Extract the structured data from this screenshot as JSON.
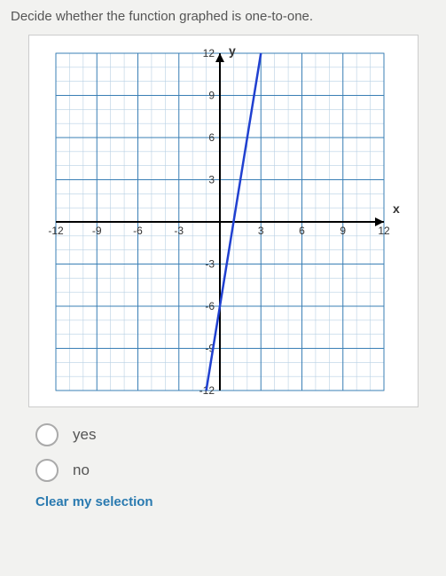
{
  "question": "Decide whether the function graphed is one-to-one.",
  "chart": {
    "type": "line",
    "x_axis_label": "x",
    "y_axis_label": "y",
    "xlim": [
      -12,
      12
    ],
    "ylim": [
      -12,
      12
    ],
    "major_step": 3,
    "minor_step": 1,
    "x_ticks": [
      -12,
      -9,
      -6,
      -3,
      3,
      6,
      9,
      12
    ],
    "y_ticks": [
      -12,
      -9,
      -6,
      -3,
      3,
      6,
      9,
      12
    ],
    "major_grid_color": "#3a7fb5",
    "minor_grid_color": "#b8d0e4",
    "axis_color": "#000000",
    "line_color": "#2040d0",
    "line_width": 2.5,
    "background_color": "#ffffff",
    "label_color": "#333333",
    "tick_fontsize": 12,
    "line_points": [
      {
        "x": -1,
        "y": -12
      },
      {
        "x": 3,
        "y": 12
      }
    ]
  },
  "options": [
    {
      "id": "yes",
      "label": "yes"
    },
    {
      "id": "no",
      "label": "no"
    }
  ],
  "clear_label": "Clear my selection",
  "colors": {
    "page_bg": "#f2f2f0",
    "text": "#555555",
    "link": "#2a7ab0"
  }
}
